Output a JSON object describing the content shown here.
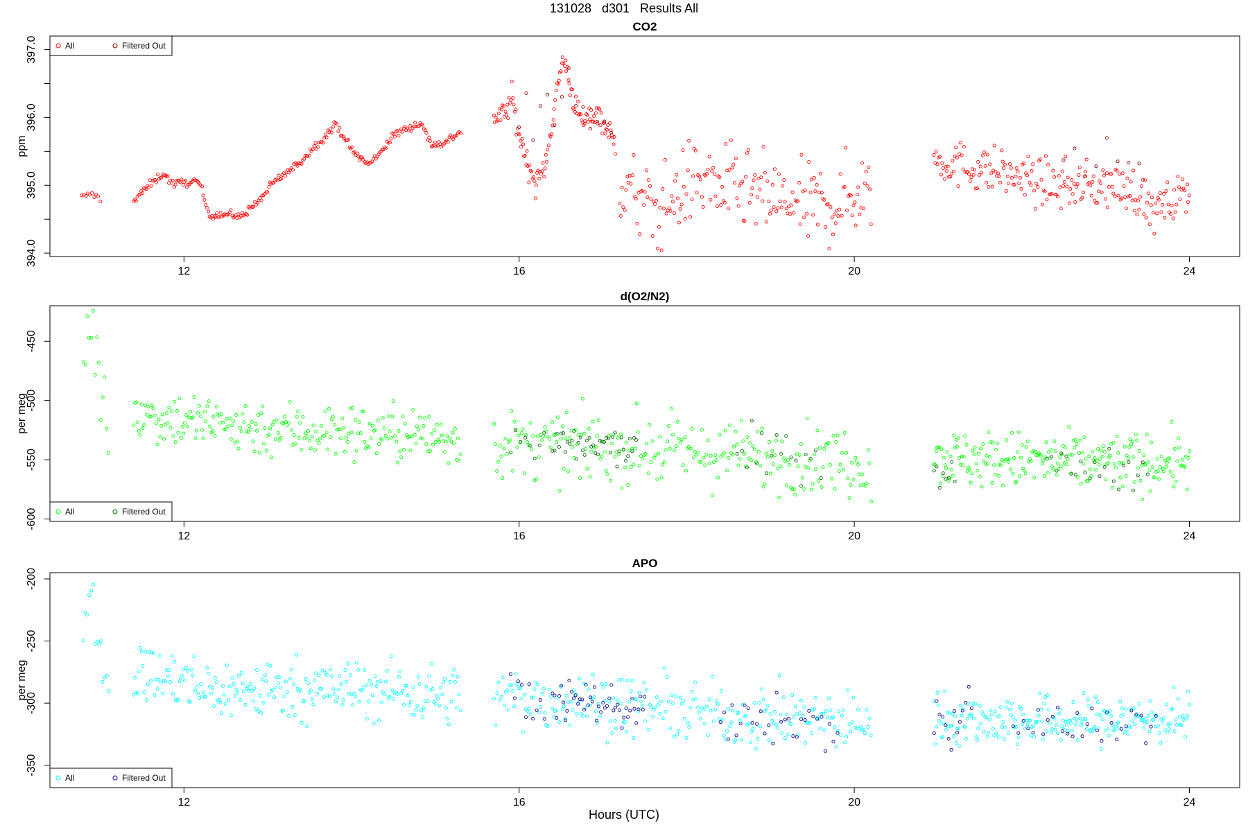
{
  "figure": {
    "suptitle": "131028   d301   Results All",
    "xlabel": "Hours (UTC)",
    "x_ticks": [
      12,
      16,
      20,
      24
    ],
    "x_range": [
      10.4,
      24.6
    ]
  },
  "chart_data": [
    {
      "type": "scatter",
      "title": "CO2",
      "ylabel": "ppm",
      "ylim": [
        393.95,
        397.2
      ],
      "y_ticks": [
        "394.0",
        "395.0",
        "396.0",
        "397.0"
      ],
      "y_minor_ticks": [
        394.5,
        395.5,
        396.5
      ],
      "legend": {
        "position": "top-left",
        "entries": [
          "All",
          "Filtered Out"
        ]
      },
      "colors": {
        "All": "#ff0000",
        "Filtered Out": "#8b0000"
      },
      "series": [
        {
          "name": "All",
          "segments": [
            {
              "x0": 10.78,
              "x1": 11.0,
              "n": 10,
              "points": [
                [
                  0,
                  394.83
                ],
                [
                  0.5,
                  394.87
                ],
                [
                  0.8,
                  394.85
                ],
                [
                  1,
                  394.78
                ]
              ],
              "noise": 0.02
            },
            {
              "x0": 11.4,
              "x1": 15.3,
              "n": 260,
              "points": [
                [
                  0,
                  394.78
                ],
                [
                  0.06,
                  395.05
                ],
                [
                  0.09,
                  395.18
                ],
                [
                  0.12,
                  395.02
                ],
                [
                  0.18,
                  395.05
                ],
                [
                  0.2,
                  395.05
                ],
                [
                  0.23,
                  394.57
                ],
                [
                  0.3,
                  394.57
                ],
                [
                  0.32,
                  394.52
                ],
                [
                  0.38,
                  394.75
                ],
                [
                  0.43,
                  395.05
                ],
                [
                  0.5,
                  395.3
                ],
                [
                  0.55,
                  395.55
                ],
                [
                  0.62,
                  395.9
                ],
                [
                  0.67,
                  395.5
                ],
                [
                  0.72,
                  395.3
                ],
                [
                  0.8,
                  395.75
                ],
                [
                  0.84,
                  395.85
                ],
                [
                  0.88,
                  395.92
                ],
                [
                  0.91,
                  395.6
                ],
                [
                  0.95,
                  395.62
                ],
                [
                  1,
                  395.8
                ]
              ],
              "noise": 0.03
            },
            {
              "x0": 15.7,
              "x1": 17.15,
              "n": 130,
              "points": [
                [
                  0,
                  395.95
                ],
                [
                  0.1,
                  396.1
                ],
                [
                  0.15,
                  396.3
                ],
                [
                  0.2,
                  395.8
                ],
                [
                  0.28,
                  395.3
                ],
                [
                  0.35,
                  395.0
                ],
                [
                  0.42,
                  395.3
                ],
                [
                  0.5,
                  396.2
                ],
                [
                  0.57,
                  396.9
                ],
                [
                  0.65,
                  396.3
                ],
                [
                  0.72,
                  395.9
                ],
                [
                  0.85,
                  396.1
                ],
                [
                  1,
                  395.6
                ]
              ],
              "noise": 0.09
            },
            {
              "x0": 17.2,
              "x1": 20.2,
              "n": 200,
              "points": [
                [
                  0,
                  395.0
                ],
                [
                  0.15,
                  394.6
                ],
                [
                  0.3,
                  395.1
                ],
                [
                  0.5,
                  394.9
                ],
                [
                  0.7,
                  394.7
                ],
                [
                  0.85,
                  394.7
                ],
                [
                  1,
                  395.0
                ]
              ],
              "noise": 0.3
            },
            {
              "x0": 20.95,
              "x1": 24.0,
              "n": 220,
              "points": [
                [
                  0,
                  395.4
                ],
                [
                  0.1,
                  395.3
                ],
                [
                  0.25,
                  395.2
                ],
                [
                  0.45,
                  395.0
                ],
                [
                  0.7,
                  395.0
                ],
                [
                  0.8,
                  394.9
                ],
                [
                  0.86,
                  394.6
                ],
                [
                  0.92,
                  394.7
                ],
                [
                  1,
                  395.0
                ]
              ],
              "noise": 0.17
            }
          ]
        },
        {
          "name": "Filtered Out",
          "segments": [
            {
              "x0": 16.0,
              "x1": 17.1,
              "n": 14,
              "points": [
                [
                  0,
                  395.9
                ],
                [
                  0.5,
                  396.5
                ],
                [
                  1,
                  395.8
                ]
              ],
              "noise": 0.2
            },
            {
              "x0": 22.5,
              "x1": 23.4,
              "n": 8,
              "points": [
                [
                  0,
                  395.3
                ],
                [
                  1,
                  395.4
                ]
              ],
              "noise": 0.15
            }
          ]
        }
      ]
    },
    {
      "type": "scatter",
      "title": "d(O2/N2)",
      "ylabel": "per meg",
      "ylim": [
        -602,
        -420
      ],
      "y_ticks": [
        "-600",
        "-550",
        "-500",
        "-450"
      ],
      "legend": {
        "position": "bottom-left",
        "entries": [
          "All",
          "Filtered Out"
        ]
      },
      "colors": {
        "All": "#00ff00",
        "Filtered Out": "#006400"
      },
      "series": [
        {
          "name": "All",
          "segments": [
            {
              "x0": 10.8,
              "x1": 11.1,
              "n": 14,
              "points": [
                [
                  0,
                  -460
                ],
                [
                  0.3,
                  -430
                ],
                [
                  0.6,
                  -480
                ],
                [
                  1,
                  -525
                ]
              ],
              "noise": 15
            },
            {
              "x0": 11.4,
              "x1": 15.3,
              "n": 250,
              "points": [
                [
                  0,
                  -510
                ],
                [
                  0.25,
                  -520
                ],
                [
                  0.5,
                  -525
                ],
                [
                  0.8,
                  -528
                ],
                [
                  1,
                  -532
                ]
              ],
              "noise": 12
            },
            {
              "x0": 15.7,
              "x1": 20.2,
              "n": 260,
              "points": [
                [
                  0,
                  -538
                ],
                [
                  0.3,
                  -540
                ],
                [
                  0.6,
                  -545
                ],
                [
                  1,
                  -552
                ]
              ],
              "noise": 14
            },
            {
              "x0": 20.95,
              "x1": 24.0,
              "n": 230,
              "points": [
                [
                  0,
                  -548
                ],
                [
                  0.5,
                  -552
                ],
                [
                  1,
                  -552
                ]
              ],
              "noise": 12
            }
          ]
        },
        {
          "name": "Filtered Out",
          "segments": [
            {
              "x0": 15.9,
              "x1": 16.3,
              "n": 8,
              "points": [
                [
                  0,
                  -535
                ],
                [
                  1,
                  -545
                ]
              ],
              "noise": 8
            },
            {
              "x0": 16.4,
              "x1": 17.4,
              "n": 40,
              "points": [
                [
                  0,
                  -538
                ],
                [
                  1,
                  -540
                ]
              ],
              "noise": 8
            },
            {
              "x0": 18.6,
              "x1": 19.6,
              "n": 18,
              "points": [
                [
                  0,
                  -545
                ],
                [
                  1,
                  -548
                ]
              ],
              "noise": 10
            },
            {
              "x0": 20.95,
              "x1": 21.2,
              "n": 8,
              "points": [
                [
                  0,
                  -556
                ],
                [
                  1,
                  -565
                ]
              ],
              "noise": 8
            },
            {
              "x0": 22.3,
              "x1": 23.5,
              "n": 22,
              "points": [
                [
                  0,
                  -555
                ],
                [
                  1,
                  -558
                ]
              ],
              "noise": 8
            }
          ]
        }
      ]
    },
    {
      "type": "scatter",
      "title": "APO",
      "ylabel": "per meg",
      "ylim": [
        -368,
        -195
      ],
      "y_ticks": [
        "-350",
        "-300",
        "-250",
        "-200"
      ],
      "legend": {
        "position": "bottom-left",
        "entries": [
          "All",
          "Filtered Out"
        ]
      },
      "colors": {
        "All": "#00ffff",
        "Filtered Out": "#00008b"
      },
      "series": [
        {
          "name": "All",
          "segments": [
            {
              "x0": 10.8,
              "x1": 11.1,
              "n": 14,
              "points": [
                [
                  0,
                  -240
                ],
                [
                  0.3,
                  -205
                ],
                [
                  0.6,
                  -240
                ],
                [
                  1,
                  -295
                ]
              ],
              "noise": 14
            },
            {
              "x0": 11.4,
              "x1": 15.3,
              "n": 250,
              "points": [
                [
                  0,
                  -275
                ],
                [
                  0.25,
                  -290
                ],
                [
                  0.5,
                  -288
                ],
                [
                  0.8,
                  -290
                ],
                [
                  1,
                  -295
                ]
              ],
              "noise": 12
            },
            {
              "x0": 15.7,
              "x1": 20.2,
              "n": 260,
              "points": [
                [
                  0,
                  -295
                ],
                [
                  0.3,
                  -300
                ],
                [
                  0.6,
                  -310
                ],
                [
                  1,
                  -315
                ]
              ],
              "noise": 12
            },
            {
              "x0": 20.95,
              "x1": 24.0,
              "n": 230,
              "points": [
                [
                  0,
                  -312
                ],
                [
                  0.5,
                  -315
                ],
                [
                  1,
                  -312
                ]
              ],
              "noise": 10
            }
          ]
        },
        {
          "name": "Filtered Out",
          "segments": [
            {
              "x0": 15.9,
              "x1": 16.3,
              "n": 10,
              "points": [
                [
                  0,
                  -285
                ],
                [
                  1,
                  -310
                ]
              ],
              "noise": 10
            },
            {
              "x0": 16.4,
              "x1": 17.5,
              "n": 45,
              "points": [
                [
                  0,
                  -295
                ],
                [
                  1,
                  -305
                ]
              ],
              "noise": 8
            },
            {
              "x0": 18.4,
              "x1": 19.8,
              "n": 30,
              "points": [
                [
                  0,
                  -315
                ],
                [
                  1,
                  -318
                ]
              ],
              "noise": 10
            },
            {
              "x0": 20.95,
              "x1": 21.4,
              "n": 14,
              "points": [
                [
                  0,
                  -320
                ],
                [
                  1,
                  -312
                ]
              ],
              "noise": 12
            },
            {
              "x0": 21.9,
              "x1": 23.6,
              "n": 30,
              "points": [
                [
                  0,
                  -318
                ],
                [
                  1,
                  -315
                ]
              ],
              "noise": 8
            }
          ]
        }
      ]
    }
  ]
}
